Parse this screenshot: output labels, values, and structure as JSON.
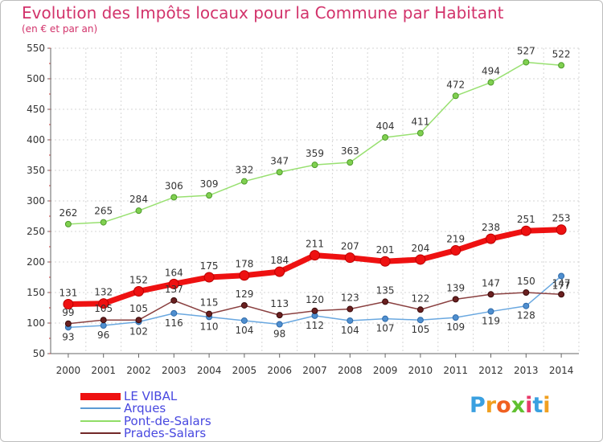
{
  "chart_data": {
    "type": "line",
    "title": "Evolution des Impôts locaux pour la Commune par Habitant",
    "subtitle": "(en € et par an)",
    "x": [
      "2000",
      "2001",
      "2002",
      "2003",
      "2004",
      "2005",
      "2006",
      "2007",
      "2008",
      "2009",
      "2010",
      "2011",
      "2012",
      "2013",
      "2014"
    ],
    "ylim": [
      50,
      550
    ],
    "yticks": [
      "50",
      "100",
      "150",
      "200",
      "250",
      "300",
      "350",
      "400",
      "450",
      "500",
      "550"
    ],
    "grid": true,
    "legend_position": "bottom-left",
    "series": [
      {
        "name": "Pont-de-Salars",
        "color": "#90dd66",
        "values": [
          262,
          265,
          284,
          306,
          309,
          332,
          347,
          359,
          363,
          404,
          411,
          472,
          494,
          527,
          522
        ],
        "labels": [
          "262",
          "265",
          "284",
          "306",
          "309",
          "332",
          "347",
          "359",
          "363",
          "404",
          "411",
          "472",
          "494",
          "527",
          "522"
        ]
      },
      {
        "name": "Arques",
        "color": "#5b9bd5",
        "values": [
          93,
          96,
          102,
          116,
          110,
          104,
          98,
          112,
          104,
          107,
          105,
          109,
          119,
          128,
          177
        ],
        "labels": [
          "93",
          "96",
          "102",
          "116",
          "110",
          "104",
          "98",
          "112",
          "104",
          "107",
          "105",
          "109",
          "119",
          "128",
          "177"
        ]
      },
      {
        "name": "Prades-Salars",
        "color": "#722828",
        "values": [
          99,
          105,
          105,
          137,
          115,
          129,
          113,
          120,
          123,
          135,
          122,
          139,
          147,
          150,
          147
        ],
        "labels": [
          "99",
          "105",
          "105",
          "137",
          "115",
          "129",
          "113",
          "120",
          "123",
          "135",
          "122",
          "139",
          "147",
          "150",
          "147"
        ]
      },
      {
        "name": "LE VIBAL",
        "color": "#ee1111",
        "values": [
          131,
          132,
          152,
          164,
          175,
          178,
          184,
          211,
          207,
          201,
          204,
          219,
          238,
          251,
          253
        ],
        "labels": [
          "131",
          "132",
          "152",
          "164",
          "175",
          "178",
          "184",
          "211",
          "207",
          "201",
          "204",
          "219",
          "238",
          "251",
          "253"
        ]
      }
    ]
  },
  "legend": [
    {
      "name": "LE VIBAL",
      "color": "#ee1111"
    },
    {
      "name": "Arques",
      "color": "#5b9bd5"
    },
    {
      "name": "Pont-de-Salars",
      "color": "#90dd66"
    },
    {
      "name": "Prades-Salars",
      "color": "#722828"
    }
  ],
  "logo": {
    "letters": [
      "P",
      "r",
      "o",
      "x",
      "i",
      "t",
      "i"
    ],
    "colors": [
      "#3aa0e0",
      "#f0a020",
      "#f06020",
      "#60c030",
      "#e83a6a",
      "#3aa0e0",
      "#f0a020"
    ]
  }
}
